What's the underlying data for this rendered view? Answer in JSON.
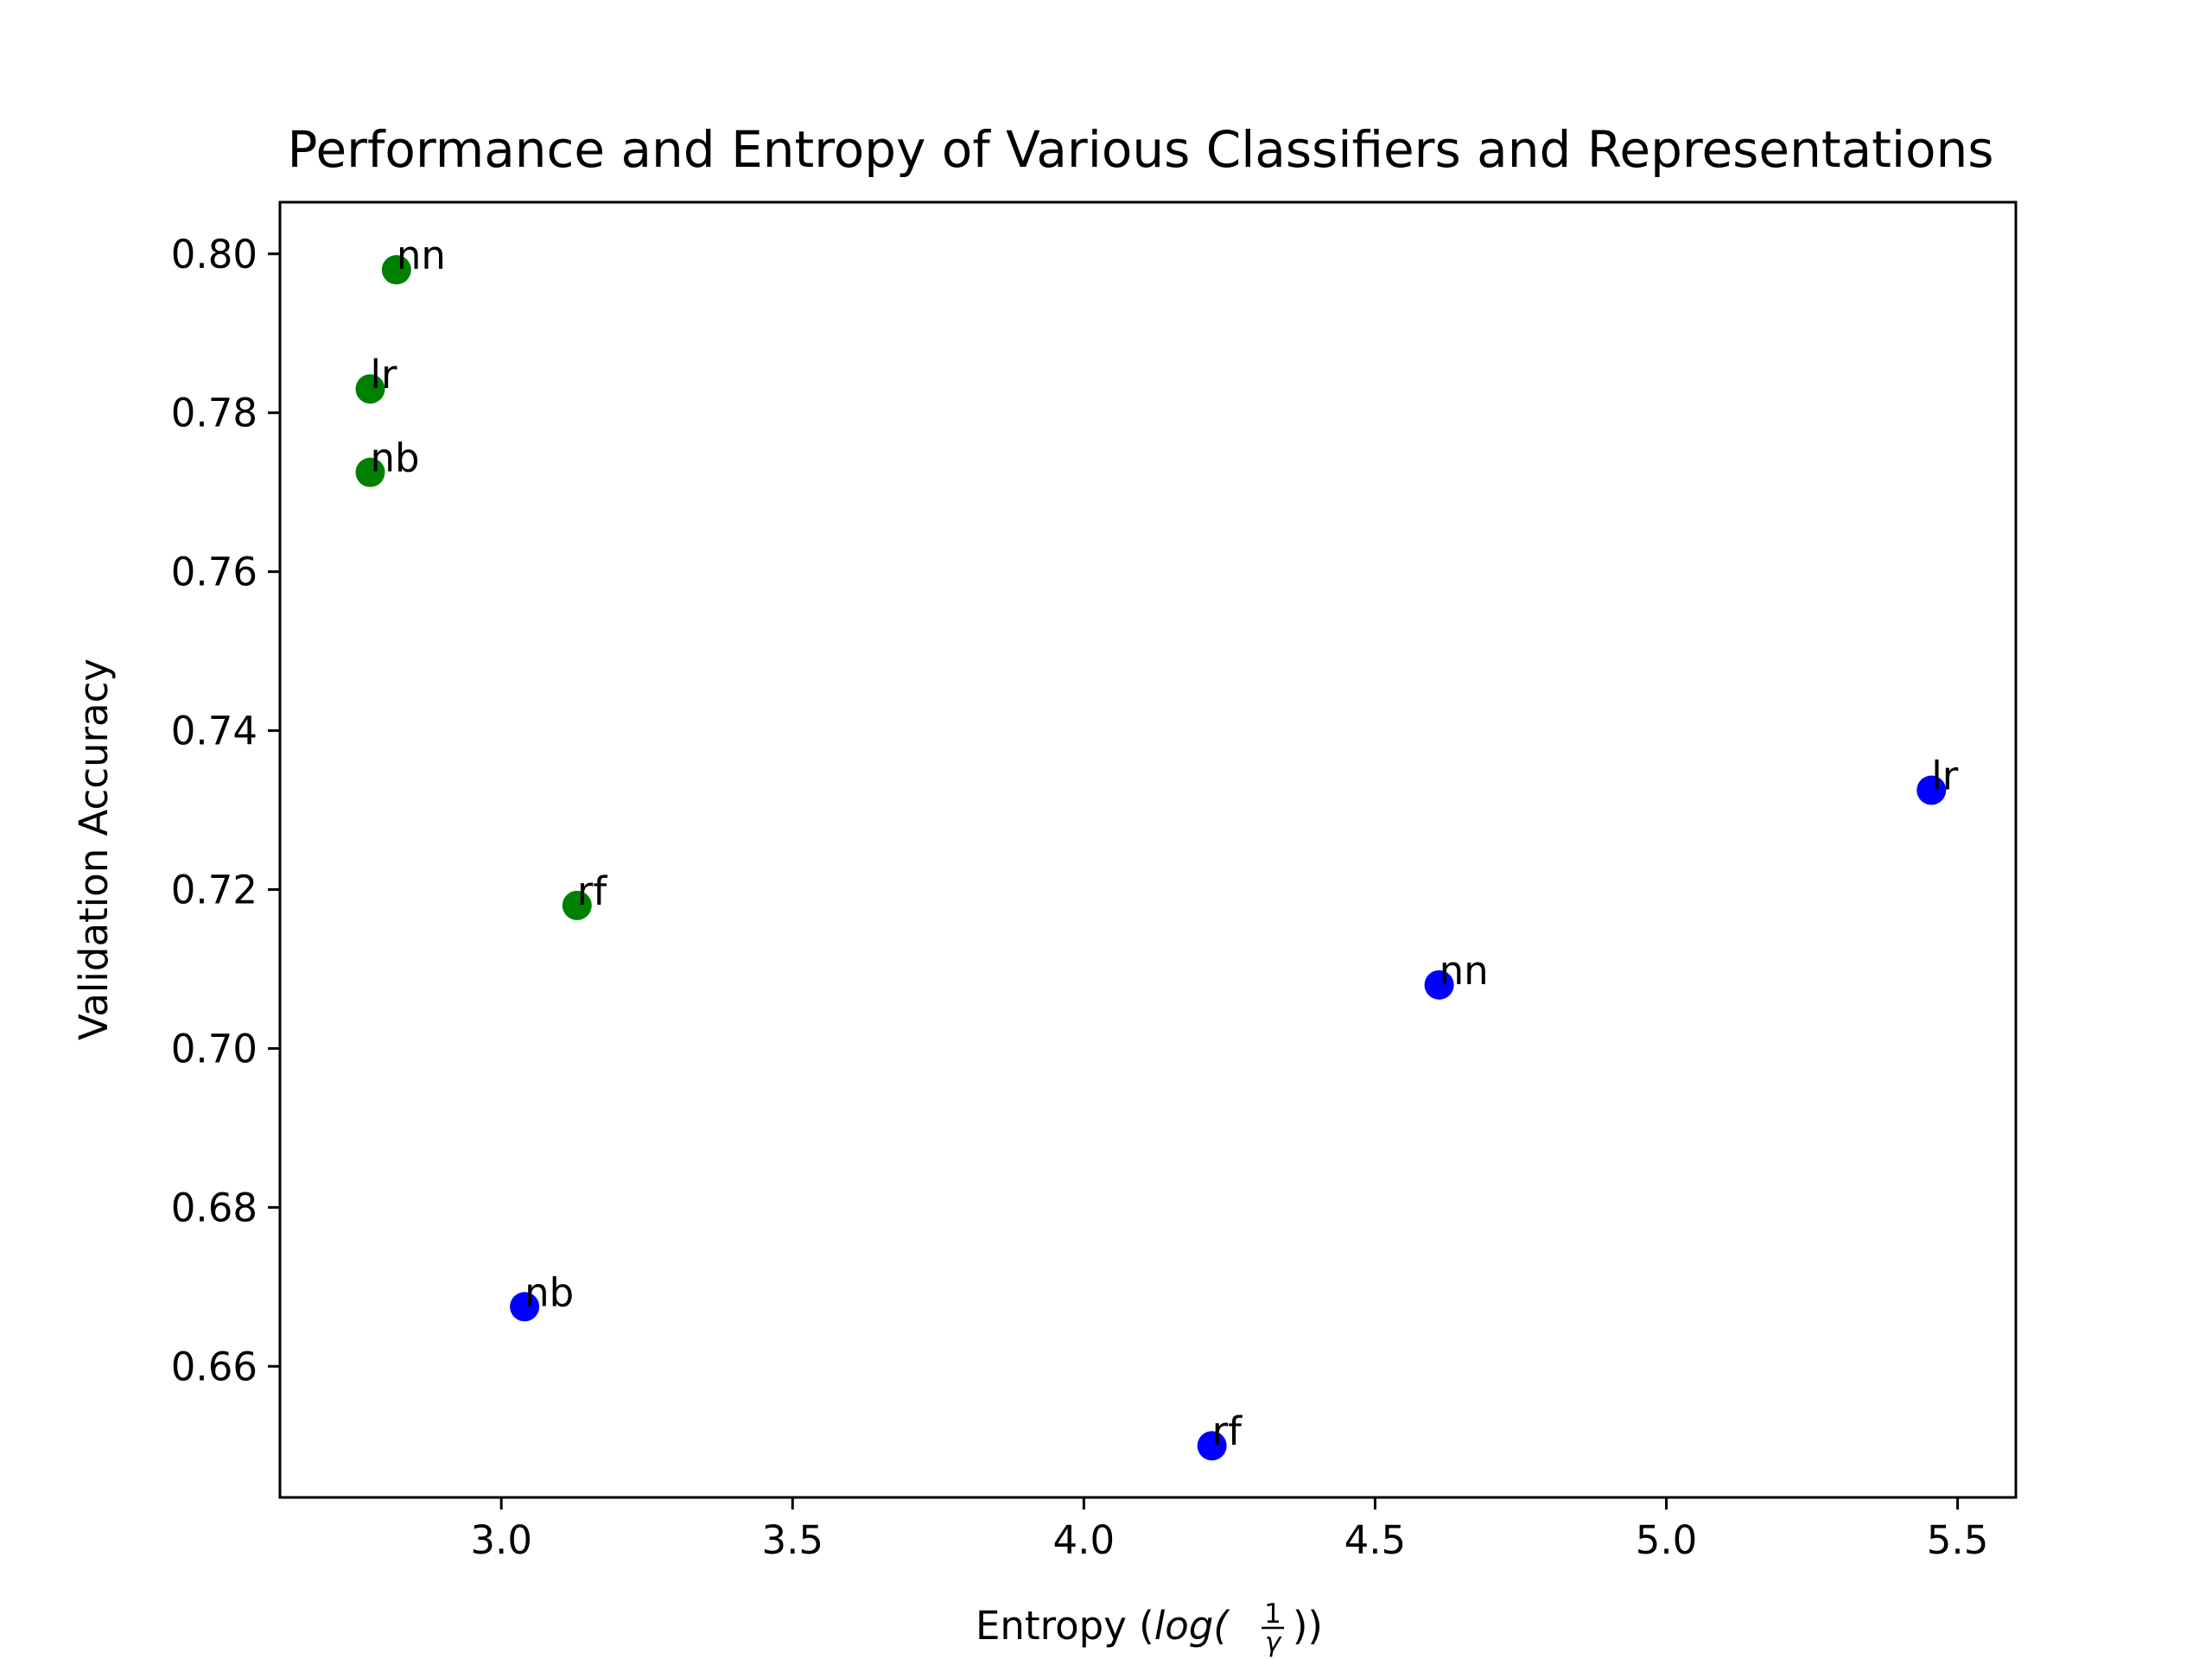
{
  "chart_data": {
    "type": "scatter",
    "title": "Performance and Entropy of Various Classifiers and Representations",
    "xlabel": "Entropy (log(1/γ))",
    "xlabel_parts": {
      "prefix": "Entropy (",
      "func": "log(",
      "num": "1",
      "den": "γ",
      "suffix": "))"
    },
    "ylabel": "Validation Accuracy",
    "xlim": [
      2.62,
      5.6
    ],
    "ylim": [
      0.6435,
      0.8065
    ],
    "xticks": [
      3.0,
      3.5,
      4.0,
      4.5,
      5.0,
      5.5
    ],
    "xtick_labels": [
      "3.0",
      "3.5",
      "4.0",
      "4.5",
      "5.0",
      "5.5"
    ],
    "yticks": [
      0.66,
      0.68,
      0.7,
      0.72,
      0.74,
      0.76,
      0.78,
      0.8
    ],
    "ytick_labels": [
      "0.66",
      "0.68",
      "0.70",
      "0.72",
      "0.74",
      "0.76",
      "0.78",
      "0.80"
    ],
    "grid": false,
    "series": [
      {
        "color": "#008000",
        "points": [
          {
            "label": "nn",
            "x": 2.82,
            "y": 0.798
          },
          {
            "label": "lr",
            "x": 2.775,
            "y": 0.783
          },
          {
            "label": "nb",
            "x": 2.775,
            "y": 0.7725
          },
          {
            "label": "rf",
            "x": 3.13,
            "y": 0.718
          }
        ]
      },
      {
        "color": "#0000ff",
        "points": [
          {
            "label": "lr",
            "x": 5.455,
            "y": 0.7325
          },
          {
            "label": "nn",
            "x": 4.61,
            "y": 0.708
          },
          {
            "label": "nb",
            "x": 3.04,
            "y": 0.6675
          },
          {
            "label": "rf",
            "x": 4.22,
            "y": 0.65
          }
        ]
      }
    ]
  }
}
